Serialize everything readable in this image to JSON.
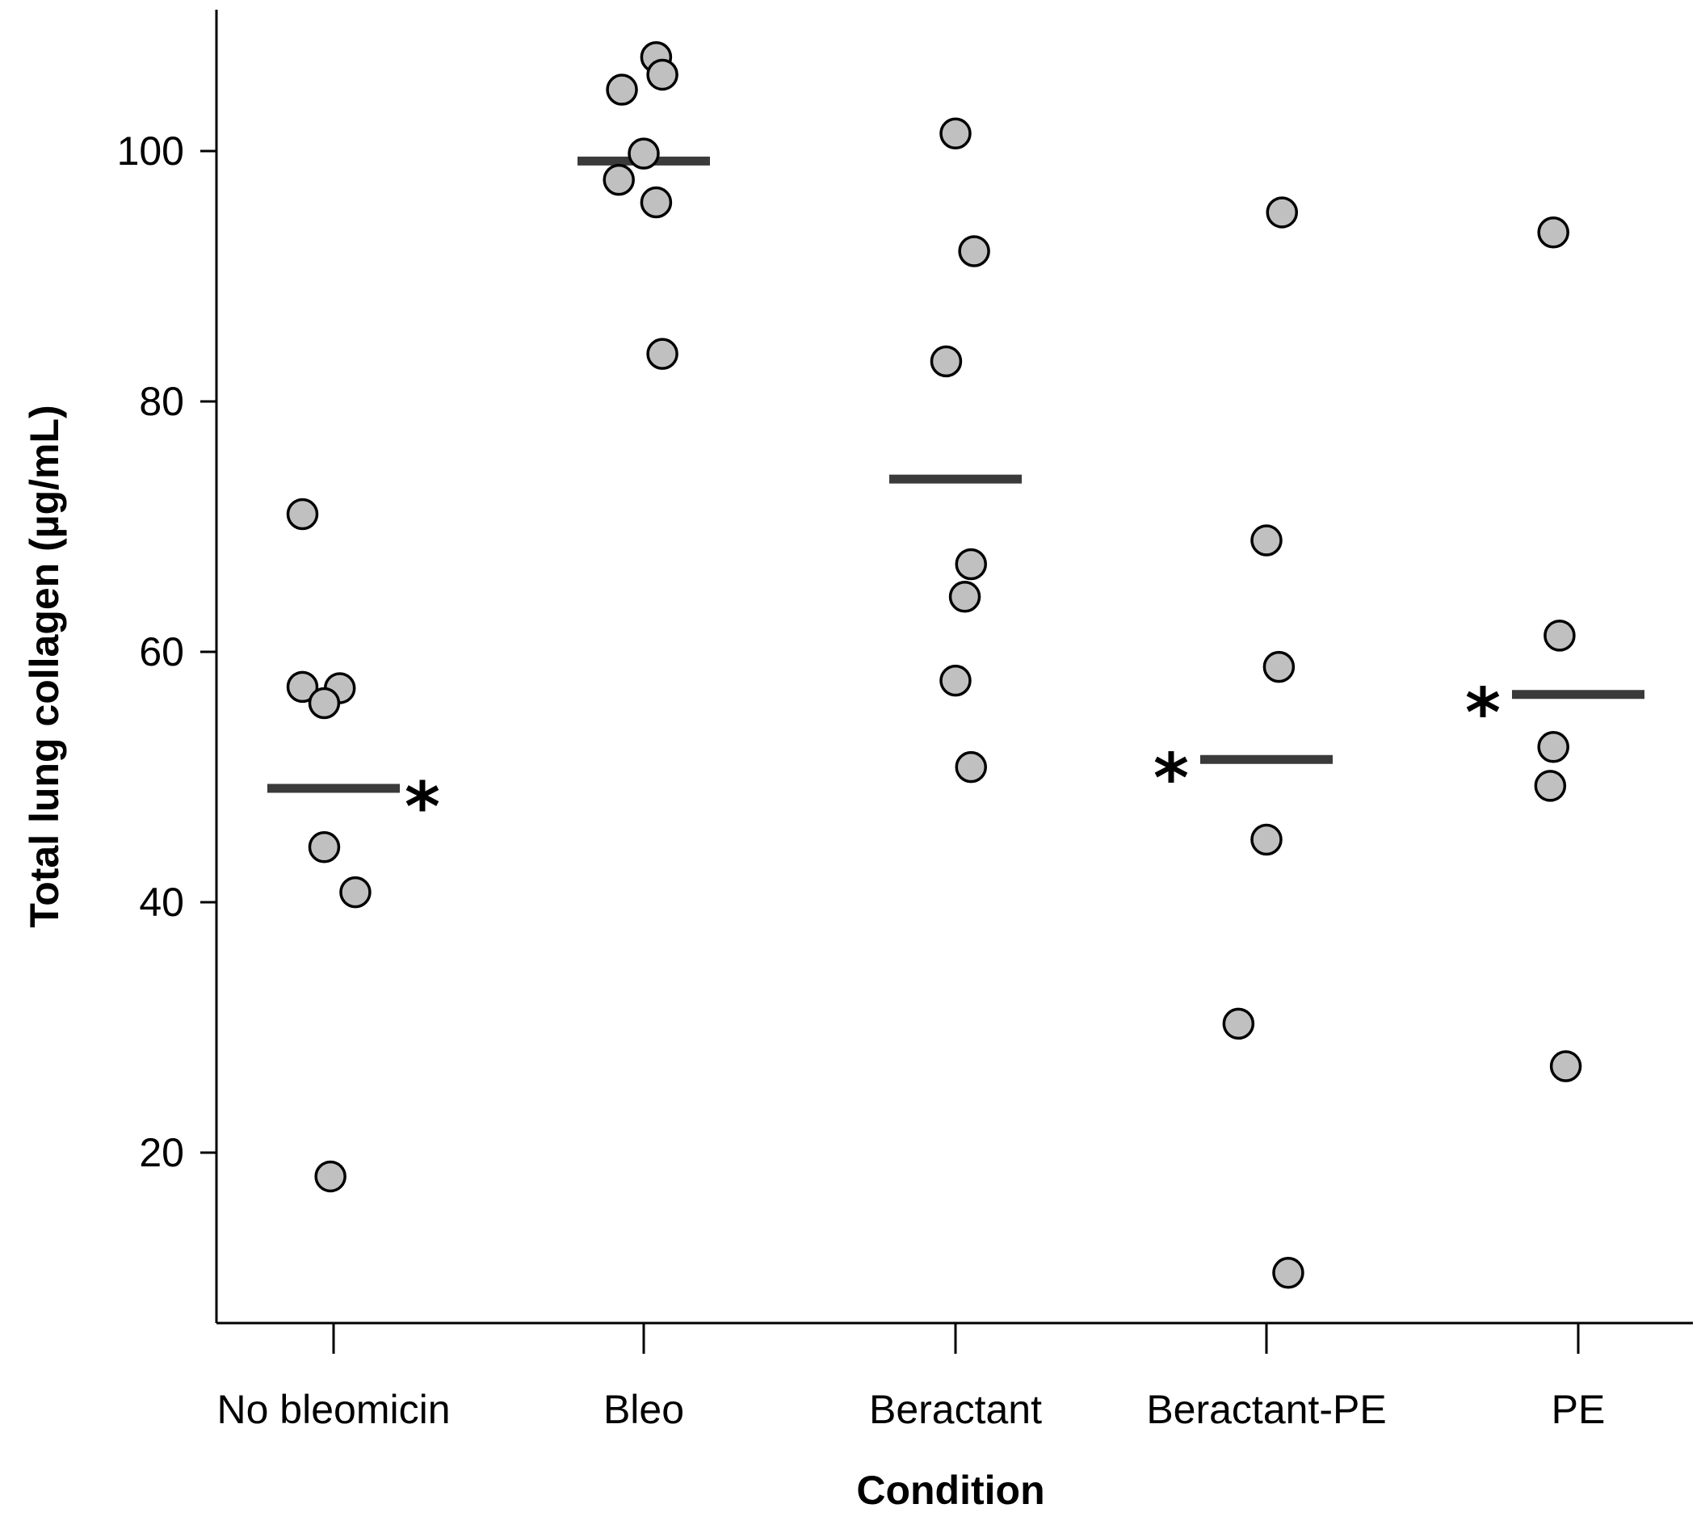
{
  "chart_data": {
    "type": "scatter",
    "subtype": "dot-strip-plot-with-means",
    "title": "",
    "xlabel": "Condition",
    "ylabel": "Total lung collagen  (µg/mL)",
    "ylim": [
      7,
      110
    ],
    "yticks": [
      20,
      40,
      60,
      80,
      100
    ],
    "grid": false,
    "legend": "none",
    "colors": {
      "point_fill": "#c0c0c0",
      "point_edge": "#000000",
      "mean_bar": "#3a3a3a"
    },
    "categories": [
      "No bleomicin",
      "Bleo",
      "Beractant",
      "Beractant-PE",
      "PE"
    ],
    "groups": [
      {
        "name": "No bleomicin",
        "points": [
          {
            "offset": -0.1,
            "y": 71
          },
          {
            "offset": -0.1,
            "y": 57.2
          },
          {
            "offset": 0.02,
            "y": 57.1
          },
          {
            "offset": -0.03,
            "y": 55.9
          },
          {
            "offset": -0.03,
            "y": 44.4
          },
          {
            "offset": 0.07,
            "y": 40.8
          },
          {
            "offset": -0.01,
            "y": 18.1
          }
        ],
        "mean": 49.1,
        "significant": true,
        "star_side": "right"
      },
      {
        "name": "Bleo",
        "points": [
          {
            "offset": 0.04,
            "y": 107.5
          },
          {
            "offset": 0.06,
            "y": 106.1
          },
          {
            "offset": -0.07,
            "y": 104.9
          },
          {
            "offset": 0.0,
            "y": 99.8
          },
          {
            "offset": -0.08,
            "y": 97.7
          },
          {
            "offset": 0.04,
            "y": 95.9
          },
          {
            "offset": 0.06,
            "y": 83.8
          }
        ],
        "mean": 99.2,
        "significant": false,
        "star_side": "none"
      },
      {
        "name": "Beractant",
        "points": [
          {
            "offset": 0.0,
            "y": 101.4
          },
          {
            "offset": 0.06,
            "y": 92
          },
          {
            "offset": -0.03,
            "y": 83.2
          },
          {
            "offset": 0.05,
            "y": 67
          },
          {
            "offset": 0.03,
            "y": 64.4
          },
          {
            "offset": 0.0,
            "y": 57.7
          },
          {
            "offset": 0.05,
            "y": 50.8
          }
        ],
        "mean": 73.8,
        "significant": false,
        "star_side": "none"
      },
      {
        "name": "Beractant-PE",
        "points": [
          {
            "offset": 0.05,
            "y": 95.1
          },
          {
            "offset": 0.0,
            "y": 68.9
          },
          {
            "offset": 0.04,
            "y": 58.8
          },
          {
            "offset": 0.0,
            "y": 45
          },
          {
            "offset": -0.09,
            "y": 30.3
          },
          {
            "offset": 0.07,
            "y": 10.4
          }
        ],
        "mean": 51.4,
        "significant": true,
        "star_side": "left"
      },
      {
        "name": "PE",
        "points": [
          {
            "offset": -0.08,
            "y": 93.5
          },
          {
            "offset": -0.06,
            "y": 61.3
          },
          {
            "offset": -0.08,
            "y": 52.4
          },
          {
            "offset": -0.09,
            "y": 49.3
          },
          {
            "offset": -0.04,
            "y": 26.9
          }
        ],
        "mean": 56.6,
        "significant": true,
        "star_side": "left"
      }
    ],
    "annotation_symbol": "*"
  }
}
